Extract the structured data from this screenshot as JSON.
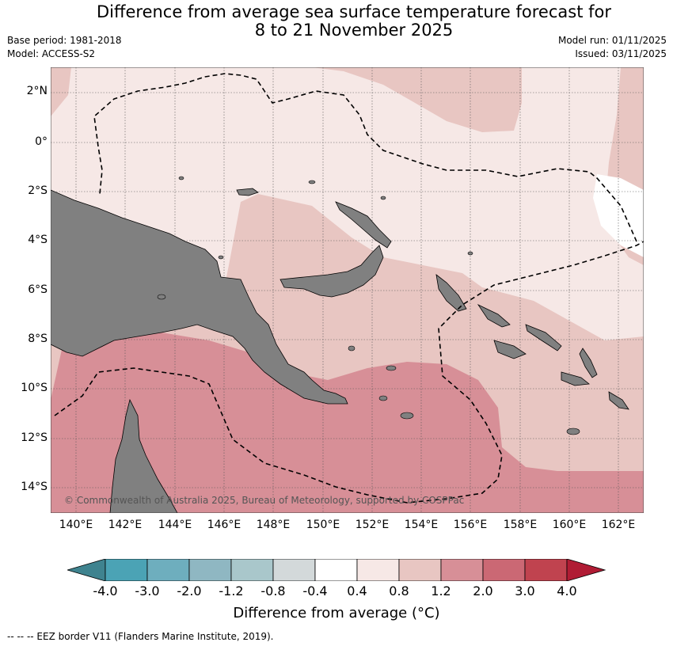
{
  "title_line1": "Difference from average sea surface temperature forecast for",
  "title_line2": "8 to 21 November 2025",
  "base_period": "Base period: 1981-2018",
  "model": "Model: ACCESS-S2",
  "model_run": "Model run: 01/11/2025",
  "issued": "Issued: 03/11/2025",
  "copyright": "© Commonwealth of Australia 2025, Bureau of Meteorology, supported by COSPPac",
  "lat_labels": [
    "2°N",
    "0°",
    "2°S",
    "4°S",
    "6°S",
    "8°S",
    "10°S",
    "12°S",
    "14°S"
  ],
  "lon_labels": [
    "140°E",
    "142°E",
    "144°E",
    "146°E",
    "148°E",
    "150°E",
    "152°E",
    "154°E",
    "156°E",
    "158°E",
    "160°E",
    "162°E"
  ],
  "colorbar": {
    "ticks": [
      "-4.0",
      "-3.0",
      "-2.0",
      "-1.2",
      "-0.8",
      "-0.4",
      "0.4",
      "0.8",
      "1.2",
      "2.0",
      "3.0",
      "4.0"
    ],
    "colors": [
      "#3f838f",
      "#4ba3b5",
      "#6eaebe",
      "#8fb7c2",
      "#a9c7cb",
      "#d3d9da",
      "#ffffff",
      "#f6e8e6",
      "#e8c6c2",
      "#d78f97",
      "#cb6874",
      "#c0434f",
      "#b01c34"
    ],
    "title": "Difference from average (°C)"
  },
  "map_colors": {
    "land": "#808080",
    "cat_0_4_0_8": "#f6e8e6",
    "cat_0_8_1_2": "#e8c6c2",
    "cat_1_2_2_0": "#d78f97",
    "cat_neutral": "#ffffff"
  },
  "footnote": "--  --  -- EEZ border V11 (Flanders Marine Institute, 2019)."
}
